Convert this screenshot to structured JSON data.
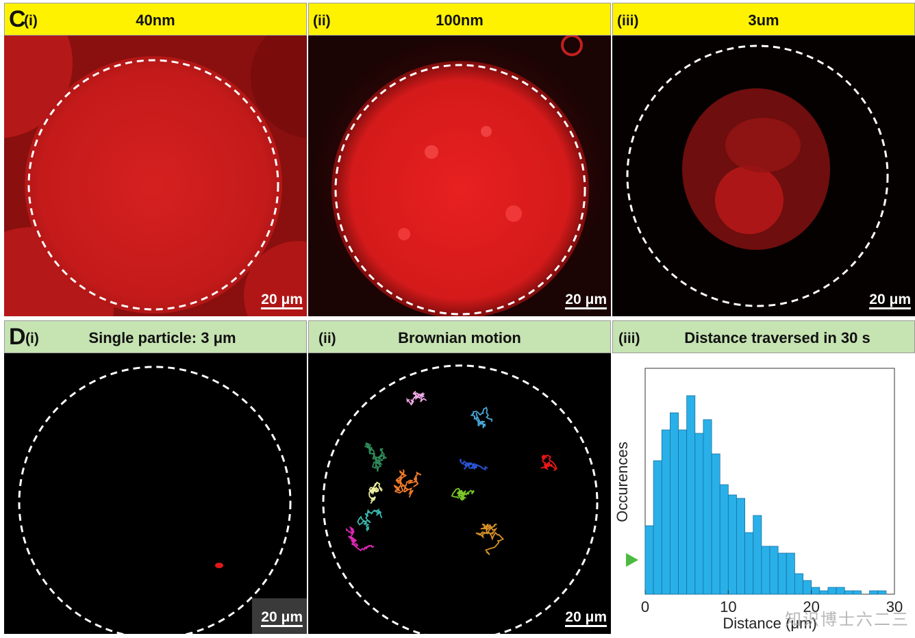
{
  "row_c": {
    "letter": "C",
    "panels": [
      {
        "label": "(i)",
        "title": "40nm",
        "scale": "20 μm"
      },
      {
        "label": "(ii)",
        "title": "100nm",
        "scale": "20 μm"
      },
      {
        "label": "(iii)",
        "title": "3um",
        "scale": "20 μm"
      }
    ]
  },
  "row_d": {
    "letter": "D",
    "panels": [
      {
        "label": "(i)",
        "title": "Single particle: 3 μm",
        "scale": "20 μm"
      },
      {
        "label": "(ii)",
        "title": "Brownian motion",
        "scale": "20 μm"
      },
      {
        "label": "(iii)",
        "title": "Distance traversed in 30 s"
      }
    ]
  },
  "chart_data": {
    "type": "bar",
    "title": "Distance traversed in 30 s",
    "xlabel": "Distance (μm)",
    "ylabel": "Occurences",
    "xlim": [
      0,
      30
    ],
    "xticks": [
      "0",
      "10",
      "20",
      "30"
    ],
    "bin_width": 1,
    "x": [
      0.5,
      1.5,
      2.5,
      3.5,
      4.5,
      5.5,
      6.5,
      7.5,
      8.5,
      9.5,
      10.5,
      11.5,
      12.5,
      13.5,
      14.5,
      15.5,
      16.5,
      17.5,
      18.5,
      19.5,
      20.5,
      21.5,
      22.5,
      23.5,
      24.5,
      25.5,
      26.5,
      27.5,
      28.5,
      29.5
    ],
    "values": [
      20,
      39,
      48,
      53,
      48,
      58,
      47,
      51,
      41,
      32,
      29,
      28,
      18,
      23,
      14,
      14,
      12,
      12,
      6,
      4,
      2,
      1,
      2,
      2,
      1,
      1,
      0,
      1,
      1,
      0
    ],
    "ylim": [
      0,
      66
    ],
    "grid": false,
    "bar_color": "#29b0e8"
  },
  "trajectories": [
    {
      "color": "#f0a8e8"
    },
    {
      "color": "#4aa8d8"
    },
    {
      "color": "#2e8a58"
    },
    {
      "color": "#2a56d8"
    },
    {
      "color": "#e81818"
    },
    {
      "color": "#f07a28"
    },
    {
      "color": "#eef0a0"
    },
    {
      "color": "#7ac828"
    },
    {
      "color": "#3ab8b0"
    },
    {
      "color": "#e028b8"
    },
    {
      "color": "#d89028"
    }
  ],
  "watermark": "知识博士六二三"
}
